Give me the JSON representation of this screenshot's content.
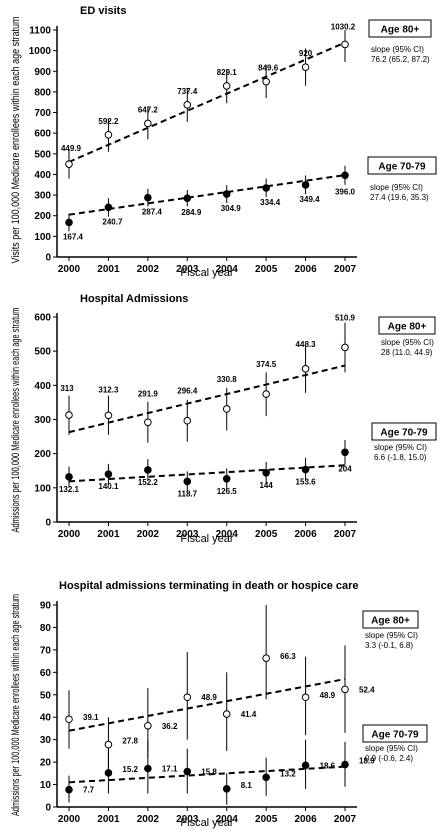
{
  "chart_data": [
    {
      "type": "scatter",
      "title": "ED visits",
      "xlabel": "Fiscal year",
      "ylabel": "Visits per 100,000 Medicare enrollees within each age stratum",
      "x": [
        2000,
        2001,
        2002,
        2003,
        2004,
        2005,
        2006,
        2007
      ],
      "ylim": [
        0,
        1100
      ],
      "yticks": [
        0,
        100,
        200,
        300,
        400,
        500,
        600,
        700,
        800,
        900,
        1000,
        1100
      ],
      "series": [
        {
          "name": "Age 80+",
          "marker": "open-circle",
          "values": [
            449.9,
            592.2,
            647.2,
            737.4,
            829.1,
            849.6,
            920,
            1030.2
          ],
          "labels": [
            "449.9",
            "592.2",
            "647.2",
            "737.4",
            "829.1",
            "849.6",
            "920",
            "1030.2"
          ],
          "ci": [
            [
              380,
              520
            ],
            [
              510,
              670
            ],
            [
              570,
              725
            ],
            [
              655,
              820
            ],
            [
              745,
              910
            ],
            [
              770,
              930
            ],
            [
              830,
              1010
            ],
            [
              945,
              1120
            ]
          ],
          "trend": [
            461,
            1039
          ],
          "slope_label": "slope (95% CI)",
          "slope": "76.2 (65.2, 87.2)"
        },
        {
          "name": "Age 70-79",
          "marker": "filled-circle",
          "values": [
            167.4,
            240.7,
            287.4,
            284.9,
            304.9,
            334.4,
            349.4,
            396.0
          ],
          "labels": [
            "167.4",
            "240.7",
            "287.4",
            "284.9",
            "304.9",
            "334.4",
            "349.4",
            "396.0"
          ],
          "ci": [
            [
              125,
              210
            ],
            [
              195,
              285
            ],
            [
              245,
              330
            ],
            [
              245,
              325
            ],
            [
              262,
              348
            ],
            [
              290,
              380
            ],
            [
              305,
              395
            ],
            [
              350,
              442
            ]
          ],
          "trend": [
            205,
            397
          ],
          "slope_label": "slope (95% CI)",
          "slope": "27.4 (19.6, 35.3)"
        }
      ]
    },
    {
      "type": "scatter",
      "title": "Hospital Admissions",
      "xlabel": "Fiscal year",
      "ylabel": "Admissions per 100,000 Medicare enrollees within each age stratum",
      "x": [
        2000,
        2001,
        2002,
        2003,
        2004,
        2005,
        2006,
        2007
      ],
      "ylim": [
        0,
        600
      ],
      "yticks": [
        0,
        100,
        200,
        300,
        400,
        500,
        600
      ],
      "series": [
        {
          "name": "Age 80+",
          "marker": "open-circle",
          "values": [
            313,
            312.3,
            291.9,
            296.4,
            330.8,
            374.5,
            448.3,
            510.9
          ],
          "labels": [
            "313",
            "312.3",
            "291.9",
            "296.4",
            "330.8",
            "374.5",
            "448.3",
            "510.9"
          ],
          "ci": [
            [
              255,
              370
            ],
            [
              255,
              370
            ],
            [
              232,
              352
            ],
            [
              235,
              358
            ],
            [
              268,
              393
            ],
            [
              310,
              438
            ],
            [
              378,
              518
            ],
            [
              438,
              583
            ]
          ],
          "trend": [
            263,
            458
          ],
          "slope_label": "slope (95% CI)",
          "slope": "28 (11.0, 44.9)"
        },
        {
          "name": "Age 70-79",
          "marker": "filled-circle",
          "values": [
            132.1,
            140.1,
            152.2,
            118.7,
            126.5,
            144,
            153.6,
            204
          ],
          "labels": [
            "132.1",
            "140.1",
            "152.2",
            "118.7",
            "126.5",
            "144",
            "153.6",
            "204"
          ],
          "ci": [
            [
              102,
              162
            ],
            [
              110,
              170
            ],
            [
              120,
              184
            ],
            [
              90,
              148
            ],
            [
              96,
              157
            ],
            [
              112,
              176
            ],
            [
              120,
              188
            ],
            [
              168,
              240
            ]
          ],
          "trend": [
            119,
            166
          ],
          "slope_label": "slope (95% CI)",
          "slope": "6.6 (-1.8, 15.0)"
        }
      ]
    },
    {
      "type": "scatter",
      "title": "Hospital admissions terminating in death or hospice care",
      "xlabel": "Fiscal year",
      "ylabel": "Admissions per 100,000 Medicare enrollees within each age stratum",
      "x": [
        2000,
        2001,
        2002,
        2003,
        2004,
        2005,
        2006,
        2007
      ],
      "ylim": [
        0,
        90
      ],
      "yticks": [
        0,
        10,
        20,
        30,
        40,
        50,
        60,
        70,
        80,
        90
      ],
      "series": [
        {
          "name": "Age 80+",
          "marker": "open-circle",
          "values": [
            39.1,
            27.8,
            36.2,
            48.9,
            41.4,
            66.3,
            48.9,
            52.4
          ],
          "labels": [
            "39.1",
            "27.8",
            "36.2",
            "48.9",
            "41.4",
            "66.3",
            "48.9",
            "52.4"
          ],
          "ci": [
            [
              26,
              52
            ],
            [
              17,
              40
            ],
            [
              22,
              53
            ],
            [
              30,
              69
            ],
            [
              25,
              60
            ],
            [
              48,
              90
            ],
            [
              32,
              67
            ],
            [
              33,
              72
            ]
          ],
          "trend": [
            34,
            57
          ],
          "slope_label": "slope (95% CI)",
          "slope": "3.3 (-0.1, 6.8)"
        },
        {
          "name": "Age 70-79",
          "marker": "filled-circle",
          "values": [
            7.7,
            15.2,
            17.1,
            15.8,
            8.1,
            13.2,
            18.6,
            18.9
          ],
          "labels": [
            "7.7",
            "15.2",
            "17.1",
            "15.8",
            "8.1",
            "13.2",
            "18.6",
            "18.9"
          ],
          "ci": [
            [
              2,
              14
            ],
            [
              6,
              26
            ],
            [
              6,
              30
            ],
            [
              6,
              26
            ],
            [
              1,
              15
            ],
            [
              5,
              22
            ],
            [
              8,
              30
            ],
            [
              9,
              29
            ]
          ],
          "trend": [
            11,
            18
          ],
          "slope_label": "slope (95% CI)",
          "slope": "0.9 (-0.6, 2.4)"
        }
      ]
    }
  ]
}
